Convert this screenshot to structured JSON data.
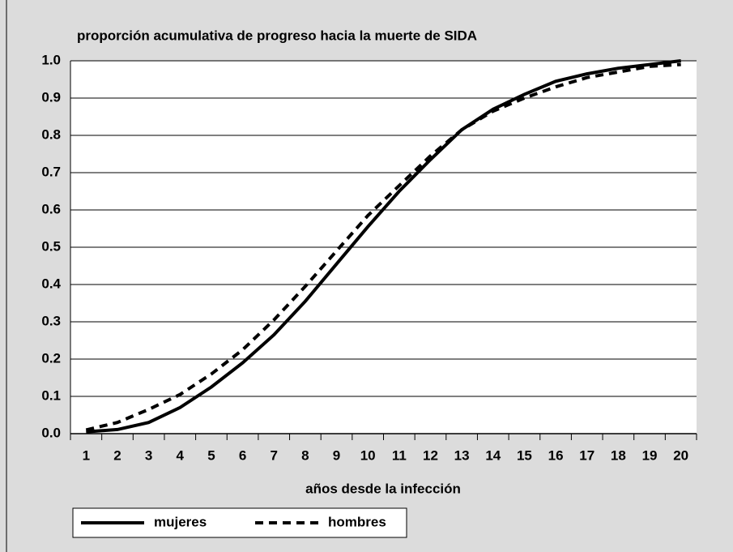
{
  "chart_data": {
    "type": "line",
    "title": "proporción acumulativa de progreso hacia la muerte de SIDA",
    "x_label": "años desde la infección",
    "categories": [
      "1",
      "2",
      "3",
      "4",
      "5",
      "6",
      "7",
      "8",
      "9",
      "10",
      "11",
      "12",
      "13",
      "14",
      "15",
      "16",
      "17",
      "18",
      "19",
      "20"
    ],
    "series": [
      {
        "name": "mujeres",
        "color": "#000000",
        "style": "solid",
        "values": [
          0.005,
          0.011,
          0.03,
          0.07,
          0.125,
          0.19,
          0.265,
          0.355,
          0.455,
          0.555,
          0.65,
          0.735,
          0.815,
          0.87,
          0.91,
          0.945,
          0.965,
          0.98,
          0.99,
          1.0
        ]
      },
      {
        "name": "hombres",
        "color": "#000000",
        "style": "dashed",
        "values": [
          0.01,
          0.03,
          0.065,
          0.105,
          0.16,
          0.225,
          0.305,
          0.395,
          0.49,
          0.585,
          0.665,
          0.745,
          0.815,
          0.865,
          0.9,
          0.93,
          0.955,
          0.97,
          0.985,
          0.99
        ]
      }
    ],
    "ylim": [
      0,
      1
    ],
    "yticks": [
      {
        "value": 0,
        "label": "0.0"
      },
      {
        "value": 0.1,
        "label": "0.1"
      },
      {
        "value": 0.2,
        "label": "0.2"
      },
      {
        "value": 0.3,
        "label": "0.3"
      },
      {
        "value": 0.4,
        "label": "0.4"
      },
      {
        "value": 0.5,
        "label": "0.5"
      },
      {
        "value": 0.6,
        "label": "0.6"
      },
      {
        "value": 0.7,
        "label": "0.7"
      },
      {
        "value": 0.8,
        "label": "0.8"
      },
      {
        "value": 0.9,
        "label": "0.9"
      },
      {
        "value": 1,
        "label": "1.0"
      }
    ],
    "grid": true
  }
}
